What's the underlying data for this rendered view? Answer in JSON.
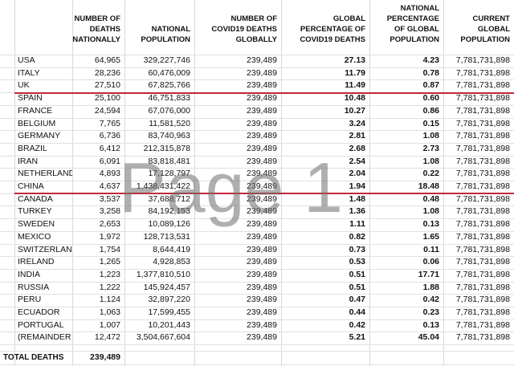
{
  "header": [
    [
      "NUMBER OF",
      "DEATHS",
      "NATIONALLY"
    ],
    [
      "NATIONAL",
      "POPULATION"
    ],
    [
      "NUMBER OF",
      "COVID19 DEATHS",
      "GLOBALLY"
    ],
    [
      "GLOBAL",
      "PERCENTAGE OF",
      "COVID19 DEATHS"
    ],
    [
      "NATIONAL",
      "PERCENTAGE",
      "OF GLOBAL",
      "POPULATION"
    ],
    [
      "CURRENT",
      "GLOBAL",
      "POPULATION"
    ]
  ],
  "rows": [
    [
      "USA",
      "64,965",
      "329,227,746",
      "239,489",
      "27.13",
      "4.23",
      "7,781,731,898"
    ],
    [
      "ITALY",
      "28,236",
      "60,476,009",
      "239,489",
      "11.79",
      "0.78",
      "7,781,731,898"
    ],
    [
      "UK",
      "27,510",
      "67,825,766",
      "239,489",
      "11.49",
      "0.87",
      "7,781,731,898"
    ],
    [
      "SPAIN",
      "25,100",
      "46,751,833",
      "239,489",
      "10.48",
      "0.60",
      "7,781,731,898"
    ],
    [
      "FRANCE",
      "24,594",
      "67,076,000",
      "239,489",
      "10.27",
      "0.86",
      "7,781,731,898"
    ],
    [
      "BELGIUM",
      "7,765",
      "11,581,520",
      "239,489",
      "3.24",
      "0.15",
      "7,781,731,898"
    ],
    [
      "GERMANY",
      "6,736",
      "83,740,963",
      "239,489",
      "2.81",
      "1.08",
      "7,781,731,898"
    ],
    [
      "BRAZIL",
      "6,412",
      "212,315,878",
      "239,489",
      "2.68",
      "2.73",
      "7,781,731,898"
    ],
    [
      "IRAN",
      "6,091",
      "83,818,481",
      "239,489",
      "2.54",
      "1.08",
      "7,781,731,898"
    ],
    [
      "NETHERLAND",
      "4,893",
      "17,128,797",
      "239,489",
      "2.04",
      "0.22",
      "7,781,731,898"
    ],
    [
      "CHINA",
      "4,637",
      "1,438,431,422",
      "239,489",
      "1.94",
      "18.48",
      "7,781,731,898"
    ],
    [
      "CANADA",
      "3,537",
      "37,688,712",
      "239,489",
      "1.48",
      "0.48",
      "7,781,731,898"
    ],
    [
      "TURKEY",
      "3,258",
      "84,192,153",
      "239,489",
      "1.36",
      "1.08",
      "7,781,731,898"
    ],
    [
      "SWEDEN",
      "2,653",
      "10,089,126",
      "239,489",
      "1.11",
      "0.13",
      "7,781,731,898"
    ],
    [
      "MEXICO",
      "1,972",
      "128,713,531",
      "239,489",
      "0.82",
      "1.65",
      "7,781,731,898"
    ],
    [
      "SWITZERLAN",
      "1,754",
      "8,644,419",
      "239,489",
      "0.73",
      "0.11",
      "7,781,731,898"
    ],
    [
      "IRELAND",
      "1,265",
      "4,928,853",
      "239,489",
      "0.53",
      "0.06",
      "7,781,731,898"
    ],
    [
      "INDIA",
      "1,223",
      "1,377,810,510",
      "239,489",
      "0.51",
      "17.71",
      "7,781,731,898"
    ],
    [
      "RUSSIA",
      "1,222",
      "145,924,457",
      "239,489",
      "0.51",
      "1.88",
      "7,781,731,898"
    ],
    [
      "PERU",
      "1,124",
      "32,897,220",
      "239,489",
      "0.47",
      "0.42",
      "7,781,731,898"
    ],
    [
      "ECUADOR",
      "1,063",
      "17,599,455",
      "239,489",
      "0.44",
      "0.23",
      "7,781,731,898"
    ],
    [
      "PORTUGAL",
      "1,007",
      "10,201,443",
      "239,489",
      "0.42",
      "0.13",
      "7,781,731,898"
    ],
    [
      "(REMAINDER",
      "12,472",
      "3,504,667,604",
      "239,489",
      "5.21",
      "45.04",
      "7,781,731,898"
    ]
  ],
  "total": [
    "TOTAL DEATHS",
    "239,489"
  ],
  "watermark": "Page 1"
}
